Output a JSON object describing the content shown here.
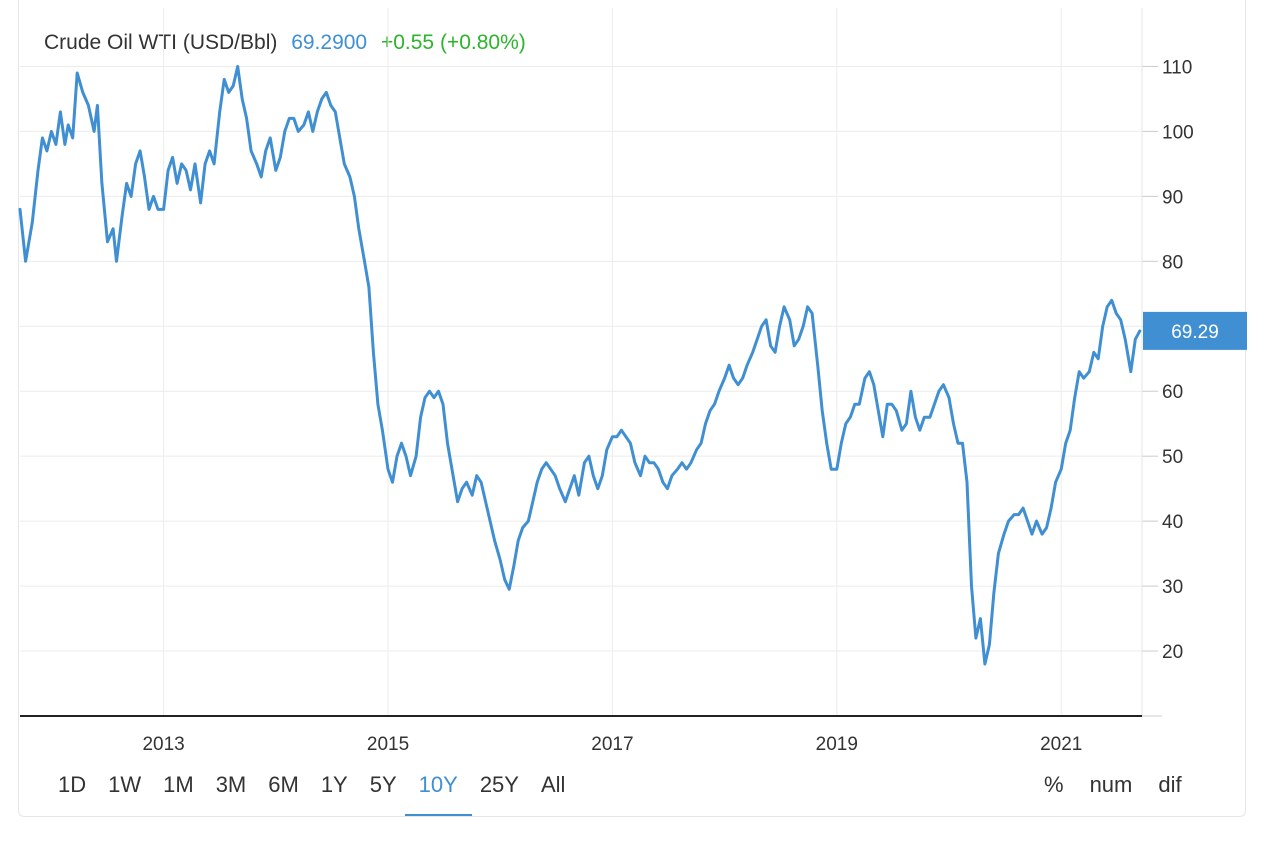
{
  "header": {
    "title": "Crude Oil WTI (USD/Bbl)",
    "price": "69.2900",
    "change": "+0.55 (+0.80%)"
  },
  "colors": {
    "line": "#3f8fd2",
    "price": "#3f8fd2",
    "change_positive": "#2bb52b",
    "grid": "#ececec",
    "axis": "#222222",
    "badge_bg": "#3f8fd2"
  },
  "controls": {
    "ranges": [
      "1D",
      "1W",
      "1M",
      "3M",
      "6M",
      "1Y",
      "5Y",
      "10Y",
      "25Y",
      "All"
    ],
    "active_range": "10Y",
    "modes": [
      "%",
      "num",
      "dif"
    ]
  },
  "chart_data": {
    "type": "line",
    "title": "Crude Oil WTI (USD/Bbl)",
    "xlabel": "",
    "ylabel": "",
    "xlim": [
      2011.72,
      2021.72
    ],
    "ylim": [
      10,
      119
    ],
    "y_ticks": [
      20,
      30,
      40,
      50,
      60,
      70,
      80,
      90,
      100,
      110
    ],
    "y_tick_labels": [
      "20",
      "30",
      "40",
      "50",
      "60",
      "",
      "80",
      "90",
      "100",
      "110"
    ],
    "x_ticks": [
      2013,
      2015,
      2017,
      2019,
      2021
    ],
    "x_tick_labels": [
      "2013",
      "2015",
      "2017",
      "2019",
      "2021"
    ],
    "grid": true,
    "y_axis_side": "right",
    "last_value_label": "69.29",
    "series": [
      {
        "values": [
          [
            2011.72,
            88
          ],
          [
            2011.77,
            80
          ],
          [
            2011.83,
            86
          ],
          [
            2011.88,
            94
          ],
          [
            2011.92,
            99
          ],
          [
            2011.96,
            97
          ],
          [
            2012.0,
            100
          ],
          [
            2012.04,
            98
          ],
          [
            2012.08,
            103
          ],
          [
            2012.12,
            98
          ],
          [
            2012.15,
            101
          ],
          [
            2012.19,
            99
          ],
          [
            2012.23,
            109
          ],
          [
            2012.28,
            106
          ],
          [
            2012.33,
            104
          ],
          [
            2012.38,
            100
          ],
          [
            2012.41,
            104
          ],
          [
            2012.45,
            92
          ],
          [
            2012.5,
            83
          ],
          [
            2012.55,
            85
          ],
          [
            2012.58,
            80
          ],
          [
            2012.63,
            87
          ],
          [
            2012.67,
            92
          ],
          [
            2012.71,
            90
          ],
          [
            2012.75,
            95
          ],
          [
            2012.79,
            97
          ],
          [
            2012.83,
            93
          ],
          [
            2012.87,
            88
          ],
          [
            2012.91,
            90
          ],
          [
            2012.95,
            88
          ],
          [
            2013.0,
            88
          ],
          [
            2013.04,
            94
          ],
          [
            2013.08,
            96
          ],
          [
            2013.12,
            92
          ],
          [
            2013.16,
            95
          ],
          [
            2013.2,
            94
          ],
          [
            2013.24,
            91
          ],
          [
            2013.28,
            95
          ],
          [
            2013.33,
            89
          ],
          [
            2013.37,
            95
          ],
          [
            2013.41,
            97
          ],
          [
            2013.45,
            95
          ],
          [
            2013.5,
            103
          ],
          [
            2013.54,
            108
          ],
          [
            2013.58,
            106
          ],
          [
            2013.62,
            107
          ],
          [
            2013.66,
            110
          ],
          [
            2013.7,
            105
          ],
          [
            2013.74,
            102
          ],
          [
            2013.78,
            97
          ],
          [
            2013.83,
            95
          ],
          [
            2013.87,
            93
          ],
          [
            2013.91,
            97
          ],
          [
            2013.95,
            99
          ],
          [
            2014.0,
            94
          ],
          [
            2014.04,
            96
          ],
          [
            2014.08,
            100
          ],
          [
            2014.12,
            102
          ],
          [
            2014.16,
            102
          ],
          [
            2014.2,
            100
          ],
          [
            2014.25,
            101
          ],
          [
            2014.29,
            103
          ],
          [
            2014.33,
            100
          ],
          [
            2014.37,
            103
          ],
          [
            2014.41,
            105
          ],
          [
            2014.45,
            106
          ],
          [
            2014.49,
            104
          ],
          [
            2014.53,
            103
          ],
          [
            2014.57,
            99
          ],
          [
            2014.61,
            95
          ],
          [
            2014.66,
            93
          ],
          [
            2014.7,
            90
          ],
          [
            2014.74,
            85
          ],
          [
            2014.79,
            80
          ],
          [
            2014.83,
            76
          ],
          [
            2014.87,
            66
          ],
          [
            2014.91,
            58
          ],
          [
            2014.95,
            54
          ],
          [
            2015.0,
            48
          ],
          [
            2015.04,
            46
          ],
          [
            2015.08,
            50
          ],
          [
            2015.12,
            52
          ],
          [
            2015.16,
            50
          ],
          [
            2015.2,
            47
          ],
          [
            2015.25,
            50
          ],
          [
            2015.29,
            56
          ],
          [
            2015.33,
            59
          ],
          [
            2015.37,
            60
          ],
          [
            2015.41,
            59
          ],
          [
            2015.45,
            60
          ],
          [
            2015.49,
            58
          ],
          [
            2015.53,
            52
          ],
          [
            2015.58,
            47
          ],
          [
            2015.62,
            43
          ],
          [
            2015.66,
            45
          ],
          [
            2015.7,
            46
          ],
          [
            2015.75,
            44
          ],
          [
            2015.79,
            47
          ],
          [
            2015.83,
            46
          ],
          [
            2015.87,
            43
          ],
          [
            2015.91,
            40
          ],
          [
            2015.95,
            37
          ],
          [
            2016.0,
            34
          ],
          [
            2016.04,
            31
          ],
          [
            2016.08,
            29.5
          ],
          [
            2016.12,
            33
          ],
          [
            2016.16,
            37
          ],
          [
            2016.2,
            39
          ],
          [
            2016.25,
            40
          ],
          [
            2016.29,
            43
          ],
          [
            2016.33,
            46
          ],
          [
            2016.37,
            48
          ],
          [
            2016.41,
            49
          ],
          [
            2016.45,
            48
          ],
          [
            2016.49,
            47
          ],
          [
            2016.53,
            45
          ],
          [
            2016.58,
            43
          ],
          [
            2016.62,
            45
          ],
          [
            2016.66,
            47
          ],
          [
            2016.7,
            44
          ],
          [
            2016.75,
            49
          ],
          [
            2016.79,
            50
          ],
          [
            2016.83,
            47
          ],
          [
            2016.87,
            45
          ],
          [
            2016.91,
            47
          ],
          [
            2016.95,
            51
          ],
          [
            2017.0,
            53
          ],
          [
            2017.04,
            53
          ],
          [
            2017.08,
            54
          ],
          [
            2017.12,
            53
          ],
          [
            2017.16,
            52
          ],
          [
            2017.2,
            49
          ],
          [
            2017.25,
            47
          ],
          [
            2017.29,
            50
          ],
          [
            2017.33,
            49
          ],
          [
            2017.37,
            49
          ],
          [
            2017.41,
            48
          ],
          [
            2017.45,
            46
          ],
          [
            2017.49,
            45
          ],
          [
            2017.53,
            47
          ],
          [
            2017.58,
            48
          ],
          [
            2017.62,
            49
          ],
          [
            2017.66,
            48
          ],
          [
            2017.7,
            49
          ],
          [
            2017.75,
            51
          ],
          [
            2017.79,
            52
          ],
          [
            2017.83,
            55
          ],
          [
            2017.87,
            57
          ],
          [
            2017.91,
            58
          ],
          [
            2017.95,
            60
          ],
          [
            2018.0,
            62
          ],
          [
            2018.04,
            64
          ],
          [
            2018.08,
            62
          ],
          [
            2018.12,
            61
          ],
          [
            2018.16,
            62
          ],
          [
            2018.2,
            64
          ],
          [
            2018.25,
            66
          ],
          [
            2018.29,
            68
          ],
          [
            2018.33,
            70
          ],
          [
            2018.37,
            71
          ],
          [
            2018.41,
            67
          ],
          [
            2018.45,
            66
          ],
          [
            2018.49,
            70
          ],
          [
            2018.53,
            73
          ],
          [
            2018.58,
            71
          ],
          [
            2018.62,
            67
          ],
          [
            2018.66,
            68
          ],
          [
            2018.7,
            70
          ],
          [
            2018.74,
            73
          ],
          [
            2018.78,
            72
          ],
          [
            2018.83,
            64
          ],
          [
            2018.87,
            57
          ],
          [
            2018.91,
            52
          ],
          [
            2018.95,
            48
          ],
          [
            2019.0,
            48
          ],
          [
            2019.04,
            52
          ],
          [
            2019.08,
            55
          ],
          [
            2019.12,
            56
          ],
          [
            2019.16,
            58
          ],
          [
            2019.2,
            58
          ],
          [
            2019.25,
            62
          ],
          [
            2019.29,
            63
          ],
          [
            2019.33,
            61
          ],
          [
            2019.37,
            57
          ],
          [
            2019.41,
            53
          ],
          [
            2019.45,
            58
          ],
          [
            2019.49,
            58
          ],
          [
            2019.53,
            57
          ],
          [
            2019.58,
            54
          ],
          [
            2019.62,
            55
          ],
          [
            2019.66,
            60
          ],
          [
            2019.7,
            56
          ],
          [
            2019.74,
            54
          ],
          [
            2019.78,
            56
          ],
          [
            2019.83,
            56
          ],
          [
            2019.87,
            58
          ],
          [
            2019.91,
            60
          ],
          [
            2019.95,
            61
          ],
          [
            2020.0,
            59
          ],
          [
            2020.04,
            55
          ],
          [
            2020.08,
            52
          ],
          [
            2020.12,
            52
          ],
          [
            2020.16,
            46
          ],
          [
            2020.2,
            30
          ],
          [
            2020.24,
            22
          ],
          [
            2020.28,
            25
          ],
          [
            2020.32,
            18
          ],
          [
            2020.36,
            21
          ],
          [
            2020.4,
            29
          ],
          [
            2020.44,
            35
          ],
          [
            2020.49,
            38
          ],
          [
            2020.53,
            40
          ],
          [
            2020.58,
            41
          ],
          [
            2020.62,
            41
          ],
          [
            2020.66,
            42
          ],
          [
            2020.7,
            40
          ],
          [
            2020.74,
            38
          ],
          [
            2020.78,
            40
          ],
          [
            2020.83,
            38
          ],
          [
            2020.87,
            39
          ],
          [
            2020.91,
            42
          ],
          [
            2020.95,
            46
          ],
          [
            2021.0,
            48
          ],
          [
            2021.04,
            52
          ],
          [
            2021.08,
            54
          ],
          [
            2021.12,
            59
          ],
          [
            2021.16,
            63
          ],
          [
            2021.2,
            62
          ],
          [
            2021.25,
            63
          ],
          [
            2021.29,
            66
          ],
          [
            2021.33,
            65
          ],
          [
            2021.37,
            70
          ],
          [
            2021.41,
            73
          ],
          [
            2021.45,
            74
          ],
          [
            2021.49,
            72
          ],
          [
            2021.53,
            71
          ],
          [
            2021.57,
            68
          ],
          [
            2021.62,
            63
          ],
          [
            2021.66,
            68
          ],
          [
            2021.7,
            69.29
          ]
        ]
      }
    ]
  }
}
